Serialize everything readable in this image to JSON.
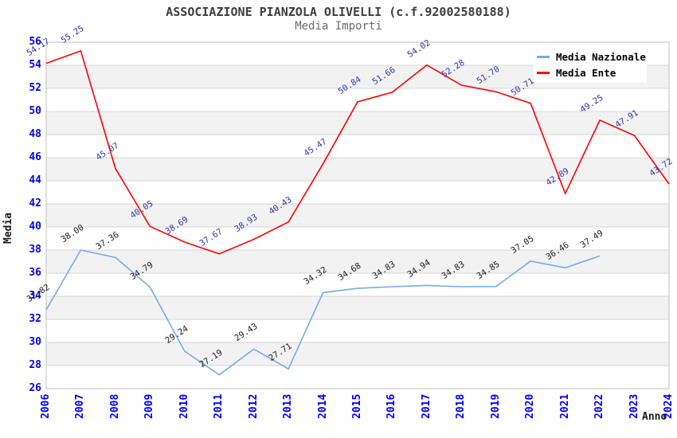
{
  "header": {
    "title": "ASSOCIAZIONE PIANZOLA OLIVELLI (c.f.92002580188)",
    "subtitle": "Media Importi"
  },
  "chart_data": {
    "type": "line",
    "title": "ASSOCIAZIONE PIANZOLA OLIVELLI (c.f.92002580188)",
    "subtitle": "Media Importi",
    "xlabel": "Anno",
    "ylabel": "Media",
    "x": [
      2006,
      2007,
      2008,
      2009,
      2010,
      2011,
      2012,
      2013,
      2014,
      2015,
      2016,
      2017,
      2018,
      2019,
      2020,
      2021,
      2022,
      2023,
      2024
    ],
    "series": [
      {
        "name": "Media Nazionale",
        "color": "#74ace3",
        "label_color": "#1a1a1a",
        "values": [
          32.82,
          38.0,
          37.36,
          34.79,
          29.24,
          27.19,
          29.43,
          27.71,
          34.32,
          34.68,
          34.83,
          34.94,
          34.83,
          34.85,
          37.05,
          36.46,
          37.49,
          null,
          null
        ]
      },
      {
        "name": "Media Ente",
        "color": "#ff0000",
        "label_color": "#3232a0",
        "values": [
          54.17,
          55.25,
          45.07,
          40.05,
          38.69,
          37.67,
          38.93,
          40.43,
          45.47,
          50.84,
          51.66,
          54.02,
          52.28,
          51.7,
          50.71,
          42.89,
          49.25,
          47.91,
          43.72
        ]
      }
    ],
    "ylim": [
      26,
      56
    ],
    "y_tick_step": 2,
    "value_labels": "each point, 2 decimals, rotated ~33deg",
    "legend_position": "top-right",
    "grid": "horizontal gridlines with alternating 2-unit background bands",
    "band_colors": [
      "#ffffff",
      "#f2f2f2"
    ],
    "gridline_color": "#d4d4d4",
    "plot_border_color": "#c0c0c0",
    "tick_label_color": "#0000ee"
  },
  "axis_titles": {
    "y": "Media",
    "x": "Anno"
  }
}
